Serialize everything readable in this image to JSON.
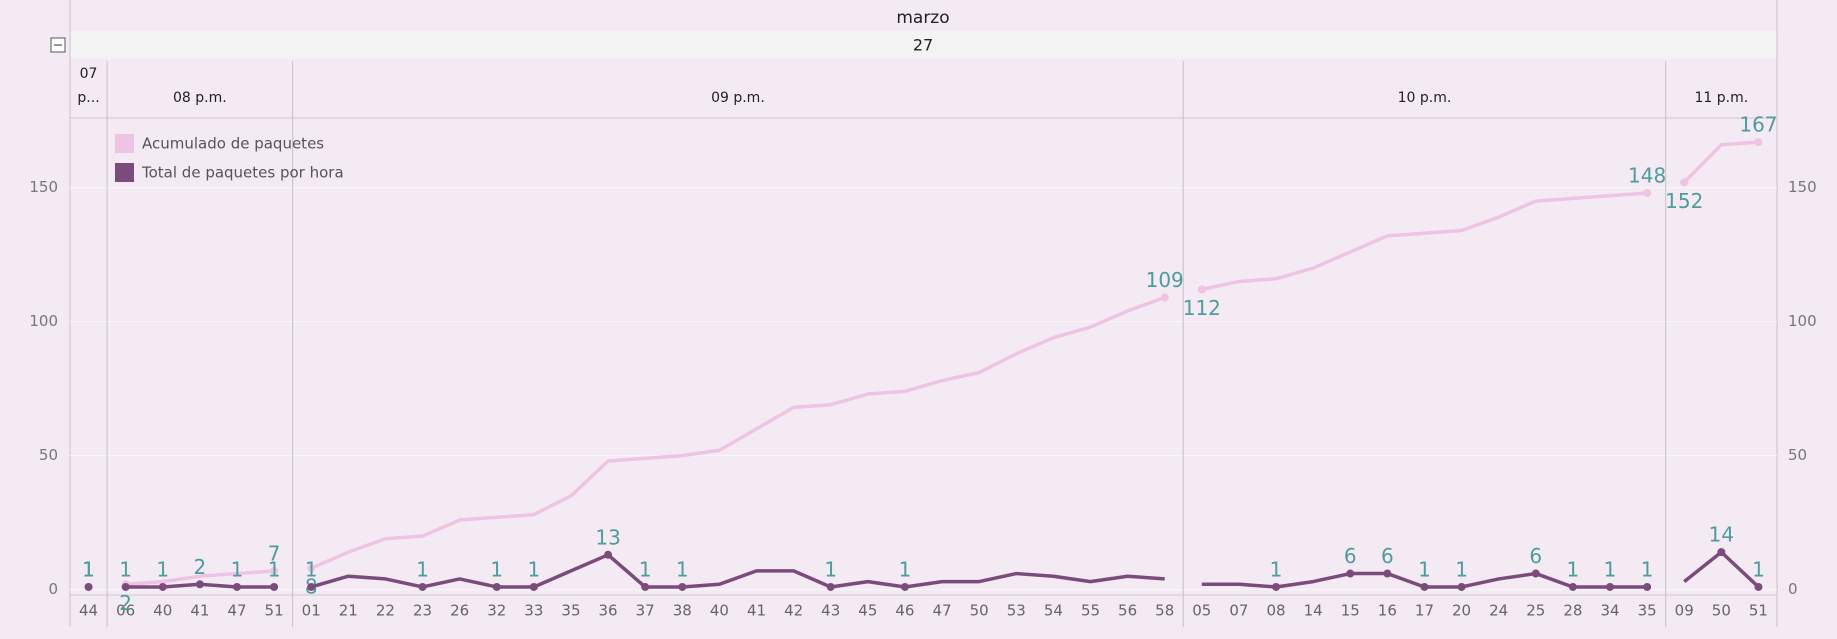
{
  "header": {
    "month": "marzo",
    "day": "27"
  },
  "chart_data": {
    "type": "line",
    "panes": [
      {
        "label": "07 p...",
        "categories": [
          "44"
        ]
      },
      {
        "label": "08 p.m.",
        "categories": [
          "06",
          "40",
          "41",
          "47",
          "51"
        ]
      },
      {
        "label": "09 p.m.",
        "categories": [
          "01",
          "21",
          "22",
          "23",
          "26",
          "32",
          "33",
          "35",
          "36",
          "37",
          "38",
          "40",
          "41",
          "42",
          "43",
          "45",
          "46",
          "47",
          "50",
          "53",
          "54",
          "55",
          "56",
          "58"
        ]
      },
      {
        "label": "10 p.m.",
        "categories": [
          "05",
          "07",
          "08",
          "14",
          "15",
          "16",
          "17",
          "20",
          "24",
          "25",
          "28",
          "34",
          "35"
        ]
      },
      {
        "label": "11 p.m.",
        "categories": [
          "09",
          "50",
          "51"
        ]
      }
    ],
    "series": [
      {
        "name": "Acumulado de paquetes",
        "color": "#efc3e3",
        "values": [
          1,
          2,
          3,
          5,
          6,
          7,
          8,
          14,
          19,
          20,
          26,
          27,
          28,
          35,
          48,
          49,
          50,
          52,
          60,
          68,
          69,
          73,
          74,
          78,
          81,
          88,
          94,
          98,
          104,
          109,
          112,
          115,
          116,
          120,
          126,
          132,
          133,
          134,
          139,
          145,
          146,
          147,
          148,
          152,
          166,
          167
        ],
        "value_labels": [
          "1",
          "2",
          null,
          null,
          null,
          "7",
          "8",
          null,
          null,
          null,
          null,
          null,
          null,
          null,
          null,
          null,
          null,
          null,
          null,
          null,
          null,
          null,
          null,
          null,
          null,
          null,
          null,
          null,
          null,
          "109",
          "112",
          null,
          null,
          null,
          null,
          null,
          null,
          null,
          null,
          null,
          null,
          null,
          "148",
          "152",
          null,
          "167"
        ]
      },
      {
        "name": "Total de paquetes por hora",
        "color": "#7b4b7b",
        "values": [
          1,
          1,
          1,
          2,
          1,
          1,
          1,
          5,
          4,
          1,
          4,
          1,
          1,
          7,
          13,
          1,
          1,
          2,
          7,
          7,
          1,
          3,
          1,
          3,
          3,
          6,
          5,
          3,
          5,
          4,
          2,
          2,
          1,
          3,
          6,
          6,
          1,
          1,
          4,
          6,
          1,
          1,
          1,
          3,
          14,
          1
        ],
        "value_labels": [
          "1",
          "1",
          "1",
          "2",
          "1",
          "1",
          "1",
          null,
          null,
          "1",
          null,
          "1",
          "1",
          null,
          "13",
          "1",
          "1",
          null,
          null,
          null,
          "1",
          null,
          "1",
          null,
          null,
          null,
          null,
          null,
          null,
          null,
          null,
          null,
          "1",
          null,
          "6",
          "6",
          "1",
          "1",
          null,
          "6",
          "1",
          "1",
          "1",
          null,
          "14",
          "1"
        ]
      }
    ],
    "ylim": [
      -2,
      176
    ],
    "yticks": [
      0,
      50,
      100,
      150
    ],
    "grid": true,
    "label_color": "#4e9c9c"
  }
}
